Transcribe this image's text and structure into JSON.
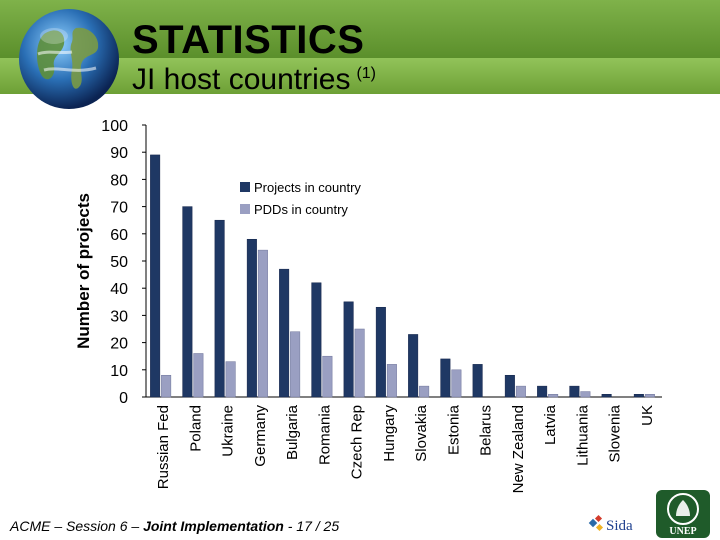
{
  "header": {
    "title": "STATISTICS",
    "subtitle": "JI host countries",
    "subtitle_note": "(1)"
  },
  "footer": {
    "prefix": "ACME – Session 6 – ",
    "bold": "Joint Implementation",
    "suffix": " - 17 / 25"
  },
  "logos": {
    "sida": "Sida",
    "unep": "UNEP"
  },
  "colors": {
    "header_dark_green": "#5b8f2b",
    "header_light_green": "#92c35a",
    "series_projects": "#1f3864",
    "series_pdds": "#9a9fc2"
  },
  "chart_data": {
    "type": "bar",
    "title": "",
    "xlabel": "",
    "ylabel": "Number of projects",
    "ylim": [
      0,
      100
    ],
    "yticks": [
      0,
      10,
      20,
      30,
      40,
      50,
      60,
      70,
      80,
      90,
      100
    ],
    "grid": false,
    "legend_position": "top-right",
    "categories": [
      "Russian Fed",
      "Poland",
      "Ukraine",
      "Germany",
      "Bulgaria",
      "Romania",
      "Czech Rep",
      "Hungary",
      "Slovakia",
      "Estonia",
      "Belarus",
      "New Zealand",
      "Latvia",
      "Lithuania",
      "Slovenia",
      "UK"
    ],
    "series": [
      {
        "name": "Projects in country",
        "color": "#1f3864",
        "values": [
          89,
          70,
          65,
          58,
          47,
          42,
          35,
          33,
          23,
          14,
          12,
          8,
          4,
          4,
          1,
          1
        ]
      },
      {
        "name": "PDDs in country",
        "color": "#9a9fc2",
        "values": [
          8,
          16,
          13,
          54,
          24,
          15,
          25,
          12,
          4,
          10,
          0,
          4,
          1,
          2,
          0,
          1
        ]
      }
    ]
  }
}
